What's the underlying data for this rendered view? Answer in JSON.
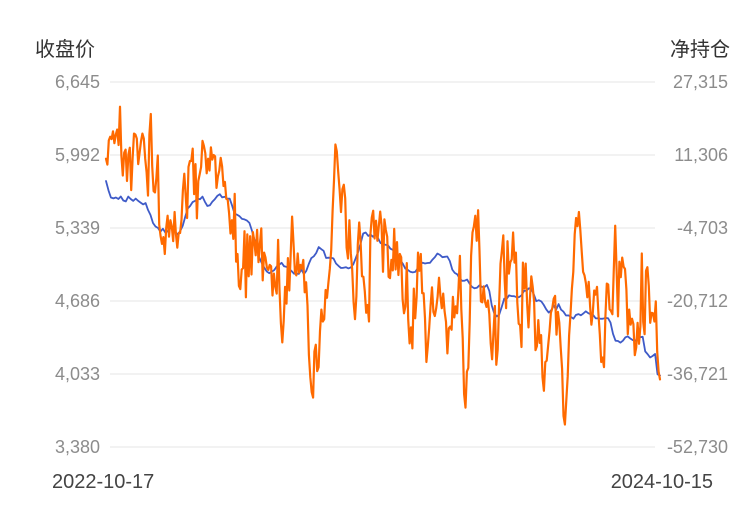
{
  "chart_data": {
    "type": "line",
    "y_left_title": "收盘价",
    "y_right_title": "净持仓",
    "y_left_ticks": [
      "6,645",
      "5,992",
      "5,339",
      "4,686",
      "4,033",
      "3,380"
    ],
    "y_right_ticks": [
      "27,315",
      "11,306",
      "-4,703",
      "-20,712",
      "-36,721",
      "-52,730"
    ],
    "y_left_range": [
      3380,
      6645
    ],
    "y_right_range": [
      -52730,
      27315
    ],
    "x_start_label": "2022-10-17",
    "x_end_label": "2024-10-15",
    "grid": true,
    "series": [
      {
        "axis": "left",
        "color": "#3f5bc8",
        "values": [
          5759,
          5675,
          5612,
          5604,
          5612,
          5598,
          5621,
          5585,
          5577,
          5620,
          5598,
          5581,
          5602,
          5581,
          5566,
          5550,
          5562,
          5501,
          5455,
          5384,
          5352,
          5340,
          5307,
          5333,
          5297,
          5312,
          5343,
          5326,
          5305,
          5279,
          5312,
          5358,
          5436,
          5512,
          5536,
          5571,
          5581,
          5602,
          5597,
          5620,
          5573,
          5536,
          5542,
          5573,
          5597,
          5626,
          5641,
          5613,
          5618,
          5602,
          5601,
          5539,
          5466,
          5458,
          5444,
          5420,
          5416,
          5405,
          5385,
          5317,
          5236,
          5167,
          5075,
          5025,
          4984,
          4950,
          4935,
          4948,
          4962,
          4995,
          5010,
          5028,
          4996,
          4991,
          4976,
          4954,
          4930,
          4930,
          4929,
          4967,
          4927,
          4956,
          5018,
          5070,
          5086,
          5115,
          5168,
          5150,
          5135,
          5071,
          5073,
          5072,
          5066,
          5021,
          5000,
          4981,
          4983,
          4988,
          4978,
          4987,
          5014,
          5071,
          5130,
          5205,
          5290,
          5299,
          5268,
          5280,
          5260,
          5288,
          5247,
          5205,
          5196,
          5189,
          5184,
          5154,
          5143,
          5113,
          5078,
          5053,
          5020,
          4976,
          4965,
          4948,
          4942,
          4946,
          4977,
          5013,
          5029,
          5021,
          5026,
          5028,
          5056,
          5079,
          5111,
          5098,
          5078,
          5081,
          5084,
          5044,
          4967,
          4937,
          4925,
          4886,
          4867,
          4868,
          4878,
          4841,
          4812,
          4800,
          4805,
          4826,
          4813,
          4809,
          4830,
          4776,
          4645,
          4573,
          4548,
          4564,
          4632,
          4707,
          4706,
          4737,
          4730,
          4729,
          4721,
          4720,
          4736,
          4776,
          4778,
          4800,
          4795,
          4743,
          4684,
          4693,
          4682,
          4650,
          4612,
          4582,
          4603,
          4647,
          4607,
          4658,
          4608,
          4590,
          4556,
          4557,
          4543,
          4528,
          4561,
          4569,
          4558,
          4574,
          4594,
          4577,
          4567,
          4561,
          4530,
          4531,
          4527,
          4528,
          4535,
          4531,
          4493,
          4393,
          4331,
          4328,
          4314,
          4331,
          4361,
          4369,
          4351,
          4336,
          4330,
          4355,
          4362,
          4366,
          4235,
          4211,
          4181,
          4194,
          4213,
          4030,
          4020
        ]
      },
      {
        "axis": "right",
        "color": "#ff6a00",
        "values": [
          10500,
          9200,
          14500,
          15300,
          14800,
          16500,
          13900,
          15800,
          16900,
          13500,
          21900,
          11200,
          6800,
          11800,
          12500,
          5600,
          11400,
          12900,
          3600,
          10500,
          16000,
          15800,
          14900,
          9300,
          11800,
          14300,
          16000,
          14900,
          10500,
          7500,
          2400,
          15800,
          20300,
          8900,
          3400,
          3100,
          6300,
          11200,
          -4000,
          -6500,
          -8200,
          -6700,
          -10400,
          -4700,
          -2000,
          -6600,
          -3000,
          -4400,
          -7600,
          -1200,
          -6000,
          -9000,
          -5800,
          -5800,
          -2900,
          3600,
          7200,
          2300,
          -2500,
          8700,
          10000,
          10000,
          12700,
          2700,
          9300,
          -2600,
          5600,
          7100,
          8700,
          14400,
          13300,
          11700,
          7300,
          10500,
          7900,
          13000,
          10300,
          11300,
          11000,
          4100,
          6600,
          7900,
          10700,
          8800,
          4500,
          5400,
          1700,
          1500,
          -1500,
          -5900,
          -3000,
          -7100,
          2800,
          -12100,
          -10400,
          -17400,
          -18100,
          -13800,
          -13500,
          -5400,
          -19900,
          -6100,
          -15300,
          -6500,
          -14900,
          -5600,
          -7700,
          -10700,
          -5100,
          -12200,
          -8200,
          -4800,
          -16200,
          -10100,
          -11200,
          -13400,
          -13900,
          -12800,
          -13100,
          -19500,
          -14700,
          -17600,
          -19100,
          -7300,
          -18200,
          -25600,
          -29800,
          -25100,
          -17600,
          -21300,
          -11300,
          -18400,
          -10300,
          -2200,
          -8000,
          -14300,
          -15100,
          -10300,
          -14500,
          -12800,
          -13600,
          -11700,
          -18800,
          -16600,
          -21700,
          -32500,
          -37400,
          -40700,
          -41900,
          -31800,
          -30300,
          -36100,
          -35200,
          -27300,
          -22600,
          -25200,
          -24700,
          -18300,
          -20000,
          -16700,
          -13700,
          -9600,
          -900,
          5700,
          13600,
          12100,
          7600,
          3700,
          -1200,
          3800,
          4800,
          1800,
          -9000,
          -11400,
          -3000,
          -10200,
          -13800,
          -21000,
          -24700,
          -19600,
          -8300,
          -3500,
          -7700,
          -15300,
          -15400,
          -18600,
          -23300,
          -21600,
          -25200,
          -6100,
          -2400,
          -900,
          -7000,
          -3100,
          -7500,
          -4300,
          -1100,
          -4200,
          -14300,
          -2800,
          -5100,
          -6600,
          -15400,
          -15700,
          -11700,
          -14000,
          -4900,
          -13800,
          -7800,
          -15000,
          -10400,
          -11100,
          -20300,
          -23400,
          -21900,
          -12400,
          -24800,
          -30000,
          -26500,
          -31100,
          -18000,
          -24500,
          -19900,
          -10100,
          -14100,
          -10400,
          -19000,
          -19000,
          -24500,
          -34100,
          -30600,
          -26600,
          -21700,
          -17700,
          -23100,
          -24000,
          -22300,
          -19800,
          -15600,
          -19600,
          -22300,
          -19100,
          -23000,
          -25300,
          -32200,
          -26700,
          -26300,
          -27000,
          -19800,
          -24300,
          -21900,
          -23400,
          -18000,
          -10800,
          -22500,
          -28800,
          -41100,
          -44100,
          -36200,
          -35400,
          -25200,
          -10800,
          -5700,
          -4300,
          -2000,
          -7500,
          -800,
          -9800,
          -20800,
          -21000,
          -17500,
          -20900,
          -22000,
          -20600,
          -23600,
          -30000,
          -33500,
          -27500,
          -21800,
          -34700,
          -31400,
          -21500,
          -12500,
          -9700,
          -6300,
          -16300,
          -22300,
          -7600,
          -14700,
          -12200,
          -11600,
          -5700,
          -12300,
          -10100,
          -21000,
          -25700,
          -26000,
          -30800,
          -12300,
          -18000,
          -12500,
          -21200,
          -26500,
          -20300,
          -15300,
          -17600,
          -20800,
          -31500,
          -30600,
          -24900,
          -29900,
          -28200,
          -37400,
          -40400,
          -34100,
          -33800,
          -30600,
          -27400,
          -23300,
          -22300,
          -20200,
          -19600,
          -28100,
          -23100,
          -25500,
          -30900,
          -35600,
          -45900,
          -47800,
          -42500,
          -37300,
          -28300,
          -23600,
          -18000,
          -14300,
          -6100,
          -2500,
          -4300,
          -1200,
          -5100,
          -9800,
          -14300,
          -15100,
          -16800,
          -19900,
          -16500,
          -21800,
          -25900,
          -23300,
          -18400,
          -19300,
          -17600,
          -23400,
          -28000,
          -34100,
          -33100,
          -35200,
          -24200,
          -16900,
          -17100,
          -22500,
          -22900,
          -23600,
          -13800,
          -4200,
          -13900,
          -24100,
          -12100,
          -15500,
          -11200,
          -13200,
          -13700,
          -18200,
          -28000,
          -22600,
          -25900,
          -24600,
          -25800,
          -32600,
          -30900,
          -25500,
          -30100,
          -26200,
          -10300,
          -25300,
          -28000,
          -14100,
          -13300,
          -17400,
          -25500,
          -23300,
          -23400,
          -25200,
          -20800,
          -31800,
          -36200,
          -37900
        ]
      }
    ]
  }
}
